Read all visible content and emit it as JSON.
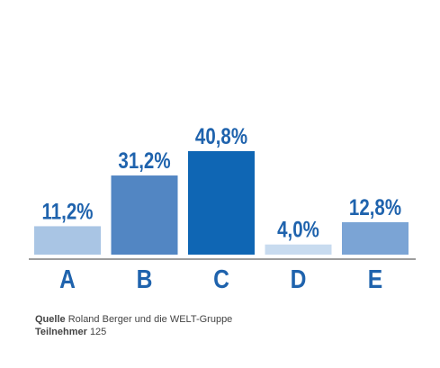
{
  "chart_data": {
    "type": "bar",
    "categories": [
      "A",
      "B",
      "C",
      "D",
      "E"
    ],
    "values": [
      11.2,
      31.2,
      40.8,
      4.0,
      12.8
    ],
    "value_labels": [
      "11,2%",
      "31,2%",
      "40,8%",
      "4,0%",
      "12,8%"
    ],
    "colors": [
      "#a9c5e4",
      "#5286c3",
      "#0f66b4",
      "#c8dbef",
      "#7ba4d5"
    ],
    "ylim": [
      0,
      40.8
    ],
    "grid": false,
    "legend": "none"
  },
  "footer": {
    "source_key": "Quelle",
    "source_value": "Roland Berger und die WELT-Gruppe",
    "participants_key": "Teilnehmer",
    "participants_value": "125"
  }
}
